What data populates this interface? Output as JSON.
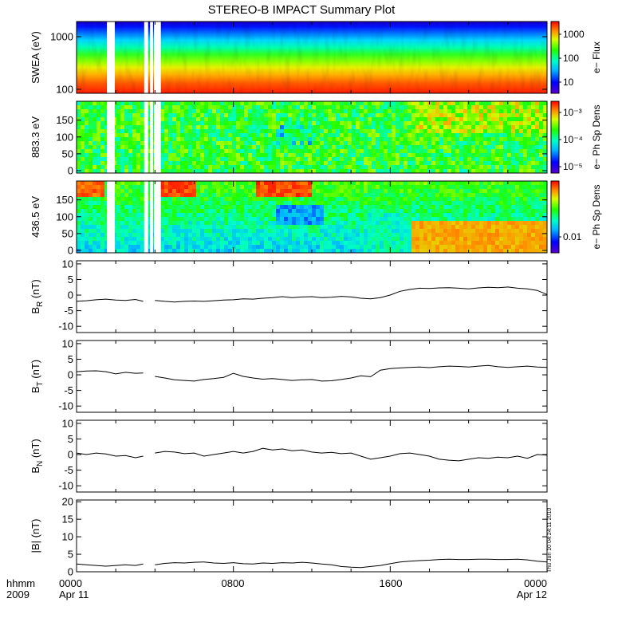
{
  "title": "STEREO-B IMPACT Summary Plot",
  "timestamp": "Thu Jun 10 04:24:11 2010",
  "time_axis": {
    "row1_labels": [
      "hhmm",
      "0000",
      "0800",
      "1600",
      "0000"
    ],
    "row2_labels": [
      "2009",
      "Apr 11",
      "Apr 12"
    ]
  },
  "chart_data": [
    {
      "type": "heatmap",
      "ylabel": "SWEA (eV)",
      "scale": "log",
      "ylim": [
        90,
        2100
      ],
      "yticks": [
        "100",
        "1000"
      ],
      "colorbar_label": "e− Flux",
      "colorbar_ticks": [
        "10",
        "100",
        "1000"
      ],
      "x_range_hours": [
        0,
        24
      ],
      "gaps_hours": [
        [
          1.55,
          1.95
        ],
        [
          3.45,
          3.65
        ],
        [
          3.75,
          3.9
        ],
        [
          3.95,
          4.3
        ]
      ]
    },
    {
      "type": "heatmap",
      "ylabel": "883.3 eV",
      "ylim": [
        0,
        180
      ],
      "yticks": [
        "0",
        "50",
        "100",
        "150"
      ],
      "colorbar_label": "e− Ph Sp Dens",
      "colorbar_ticks": [
        "10⁻³",
        "10⁻⁴",
        "10⁻⁵"
      ],
      "x_range_hours": [
        0,
        24
      ],
      "gaps_hours": [
        [
          1.55,
          1.95
        ],
        [
          3.45,
          3.65
        ],
        [
          3.75,
          3.9
        ],
        [
          3.95,
          4.3
        ]
      ]
    },
    {
      "type": "heatmap",
      "ylabel": "436.5 eV",
      "ylim": [
        0,
        180
      ],
      "yticks": [
        "0",
        "50",
        "100",
        "150"
      ],
      "colorbar_label": "e− Ph Sp Dens",
      "colorbar_ticks": [
        "0.01"
      ],
      "x_range_hours": [
        0,
        24
      ],
      "gaps_hours": [
        [
          1.55,
          1.95
        ],
        [
          3.45,
          3.65
        ],
        [
          3.75,
          3.9
        ],
        [
          3.95,
          4.3
        ]
      ]
    },
    {
      "type": "line",
      "ylabel": "B",
      "ylabel_sub": "R",
      "ylabel_unit": "(nT)",
      "ylim": [
        -12,
        11
      ],
      "yticks": [
        "-10",
        "-5",
        "0",
        "5",
        "10"
      ],
      "x": [
        0,
        0.5,
        1.0,
        1.5,
        2.0,
        2.5,
        3.0,
        3.4,
        3.6,
        4.0,
        4.5,
        5.0,
        5.5,
        6.0,
        6.5,
        7.0,
        7.5,
        8.0,
        8.5,
        9.0,
        9.5,
        10.0,
        10.5,
        11.0,
        11.5,
        12.0,
        12.5,
        13.0,
        13.5,
        14.0,
        14.5,
        15.0,
        15.5,
        16.0,
        16.5,
        17.0,
        17.5,
        18.0,
        18.5,
        19.0,
        19.5,
        20.0,
        20.5,
        21.0,
        21.5,
        22.0,
        22.5,
        23.0,
        23.5,
        24.0
      ],
      "y": [
        -2.0,
        -1.8,
        -1.5,
        -1.3,
        -1.6,
        -1.7,
        -1.4,
        -2.0,
        null,
        -1.7,
        -2.0,
        -2.2,
        -2.0,
        -1.9,
        -2.0,
        -1.8,
        -1.6,
        -1.5,
        -1.2,
        -1.3,
        -1.0,
        -0.8,
        -0.5,
        -0.8,
        -0.6,
        -0.5,
        -0.8,
        -0.7,
        -0.4,
        -0.6,
        -1.0,
        -1.2,
        -0.8,
        0.0,
        1.2,
        1.8,
        2.2,
        2.1,
        2.3,
        2.4,
        2.2,
        2.0,
        2.3,
        2.5,
        2.4,
        2.6,
        2.2,
        2.0,
        1.5,
        0.2
      ]
    },
    {
      "type": "line",
      "ylabel": "B",
      "ylabel_sub": "T",
      "ylabel_unit": "(nT)",
      "ylim": [
        -12,
        11
      ],
      "yticks": [
        "-10",
        "-5",
        "0",
        "5",
        "10"
      ],
      "x": [
        0,
        0.5,
        1.0,
        1.5,
        2.0,
        2.5,
        3.0,
        3.4,
        3.6,
        4.0,
        4.5,
        5.0,
        5.5,
        6.0,
        6.5,
        7.0,
        7.5,
        8.0,
        8.5,
        9.0,
        9.5,
        10.0,
        10.5,
        11.0,
        11.5,
        12.0,
        12.5,
        13.0,
        13.5,
        14.0,
        14.5,
        15.0,
        15.5,
        16.0,
        16.5,
        17.0,
        17.5,
        18.0,
        18.5,
        19.0,
        19.5,
        20.0,
        20.5,
        21.0,
        21.5,
        22.0,
        22.5,
        23.0,
        23.5,
        24.0
      ],
      "y": [
        1.0,
        1.2,
        1.3,
        1.0,
        0.3,
        0.8,
        0.5,
        0.6,
        null,
        -0.5,
        -1.0,
        -1.6,
        -1.8,
        -2.0,
        -1.5,
        -1.2,
        -0.8,
        0.5,
        -0.5,
        -1.0,
        -1.4,
        -1.2,
        -1.5,
        -1.8,
        -1.6,
        -1.5,
        -2.0,
        -1.9,
        -1.5,
        -1.0,
        -0.3,
        -0.6,
        1.5,
        2.0,
        2.2,
        2.4,
        2.5,
        2.3,
        2.6,
        2.8,
        2.7,
        2.5,
        2.8,
        3.0,
        2.6,
        2.4,
        2.6,
        2.8,
        2.5,
        2.4
      ]
    },
    {
      "type": "line",
      "ylabel": "B",
      "ylabel_sub": "N",
      "ylabel_unit": "(nT)",
      "ylim": [
        -12,
        11
      ],
      "yticks": [
        "-10",
        "-5",
        "0",
        "5",
        "10"
      ],
      "x": [
        0,
        0.5,
        1.0,
        1.5,
        2.0,
        2.5,
        3.0,
        3.4,
        3.6,
        4.0,
        4.5,
        5.0,
        5.5,
        6.0,
        6.5,
        7.0,
        7.5,
        8.0,
        8.5,
        9.0,
        9.5,
        10.0,
        10.5,
        11.0,
        11.5,
        12.0,
        12.5,
        13.0,
        13.5,
        14.0,
        14.5,
        15.0,
        15.5,
        16.0,
        16.5,
        17.0,
        17.5,
        18.0,
        18.5,
        19.0,
        19.5,
        20.0,
        20.5,
        21.0,
        21.5,
        22.0,
        22.5,
        23.0,
        23.5,
        24.0
      ],
      "y": [
        0.5,
        0.0,
        0.5,
        0.2,
        -0.5,
        -0.3,
        -1.0,
        -0.5,
        null,
        0.5,
        1.0,
        0.8,
        0.3,
        0.5,
        -0.5,
        0.0,
        0.5,
        1.0,
        0.5,
        1.0,
        2.0,
        1.5,
        1.8,
        1.2,
        1.5,
        0.8,
        0.5,
        0.7,
        0.3,
        0.5,
        -0.5,
        -1.5,
        -1.0,
        -0.5,
        0.3,
        0.5,
        0.0,
        -0.5,
        -1.5,
        -1.8,
        -2.0,
        -1.5,
        -1.0,
        -1.2,
        -0.8,
        -1.0,
        -0.5,
        -1.2,
        0.0,
        -0.2
      ]
    },
    {
      "type": "line",
      "ylabel": "|B|",
      "ylabel_sub": "",
      "ylabel_unit": "(nT)",
      "ylim": [
        0,
        20.5
      ],
      "yticks": [
        "0",
        "5",
        "10",
        "15",
        "20"
      ],
      "x": [
        0,
        0.5,
        1.0,
        1.5,
        2.0,
        2.5,
        3.0,
        3.4,
        3.6,
        4.0,
        4.5,
        5.0,
        5.5,
        6.0,
        6.5,
        7.0,
        7.5,
        8.0,
        8.5,
        9.0,
        9.5,
        10.0,
        10.5,
        11.0,
        11.5,
        12.0,
        12.5,
        13.0,
        13.5,
        14.0,
        14.5,
        15.0,
        15.5,
        16.0,
        16.5,
        17.0,
        17.5,
        18.0,
        18.5,
        19.0,
        19.5,
        20.0,
        20.5,
        21.0,
        21.5,
        22.0,
        22.5,
        23.0,
        23.5,
        24.0
      ],
      "y": [
        2.2,
        2.0,
        1.8,
        1.6,
        1.8,
        2.0,
        1.8,
        2.2,
        null,
        2.0,
        2.4,
        2.6,
        2.5,
        2.7,
        2.8,
        2.5,
        2.4,
        2.6,
        2.3,
        2.2,
        2.5,
        2.4,
        2.6,
        2.5,
        2.7,
        2.5,
        2.2,
        2.0,
        1.5,
        1.3,
        1.2,
        1.5,
        1.8,
        2.3,
        2.8,
        3.0,
        3.2,
        3.3,
        3.5,
        3.6,
        3.5,
        3.5,
        3.6,
        3.6,
        3.5,
        3.5,
        3.6,
        3.4,
        3.0,
        2.8
      ]
    }
  ]
}
